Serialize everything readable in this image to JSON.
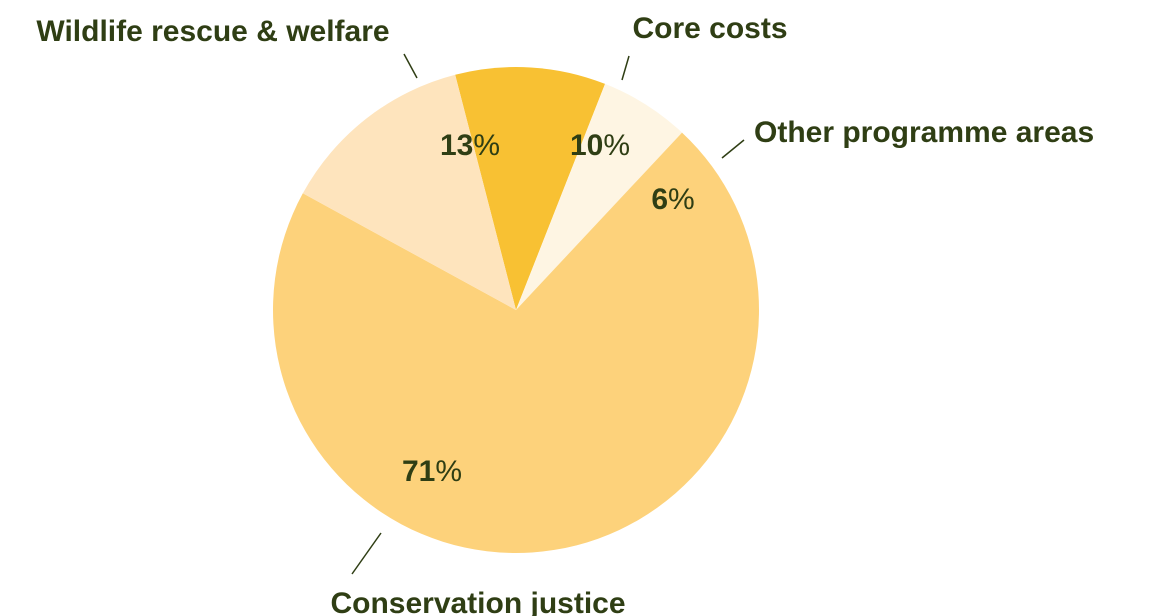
{
  "chart_data": {
    "type": "pie",
    "title": "",
    "slices": [
      {
        "label": "Core costs",
        "value": 10,
        "value_text": "10",
        "unit": "%",
        "color": "#f8c133"
      },
      {
        "label": "Other programme areas",
        "value": 6,
        "value_text": "6",
        "unit": "%",
        "color": "#fef5e3"
      },
      {
        "label": "Conservation justice",
        "value": 71,
        "value_text": "71",
        "unit": "%",
        "color": "#fdd27b"
      },
      {
        "label": "Wildlife rescue & welfare",
        "value": 13,
        "value_text": "13",
        "unit": "%",
        "color": "#fee4bd"
      }
    ],
    "start": "clockwise from Core costs near top",
    "legend": "none (direct labels with leader lines)"
  },
  "colors": {
    "text": "#2f3e14",
    "leader_line": "#2f3e14",
    "background": "#ffffff"
  }
}
